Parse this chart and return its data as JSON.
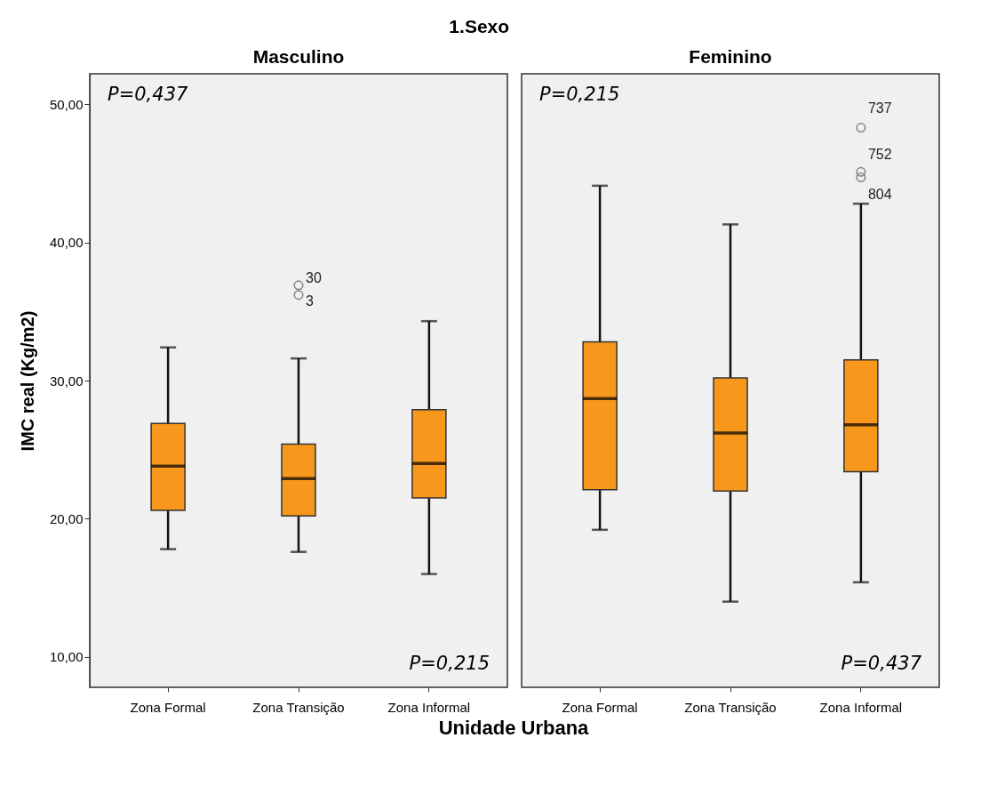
{
  "chart_data": [
    {
      "type": "box",
      "title": "1.Sexo",
      "subtitle": "Masculino",
      "xlabel": "Unidade Urbana",
      "ylabel": "IMC real (Kg/m2)",
      "categories": [
        "Zona Formal",
        "Zona Transição",
        "Zona Informal"
      ],
      "ylim": [
        7.8,
        52.2
      ],
      "yticks": [
        {
          "value": 10,
          "label": "10,00"
        },
        {
          "value": 20,
          "label": "20,00"
        },
        {
          "value": 30,
          "label": "30,00"
        },
        {
          "value": 40,
          "label": "40,00"
        },
        {
          "value": 50,
          "label": "50,00"
        }
      ],
      "grid": false,
      "series": [
        {
          "color": "#f7981d",
          "boxes": [
            {
              "low": 17.8,
              "q1": 20.6,
              "median": 23.8,
              "q3": 26.9,
              "high": 32.4
            },
            {
              "low": 17.6,
              "q1": 20.2,
              "median": 22.9,
              "q3": 25.4,
              "high": 31.6,
              "outliers": [
                36.9,
                36.2
              ]
            },
            {
              "low": 16.0,
              "q1": 21.5,
              "median": 24.0,
              "q3": 27.9,
              "high": 34.3
            }
          ]
        }
      ],
      "annotations": [
        "P=0,437",
        "P=0,215",
        "30",
        "3"
      ]
    },
    {
      "type": "box",
      "subtitle": "Feminino",
      "categories": [
        "Zona Formal",
        "Zona Transição",
        "Zona Informal"
      ],
      "ylim": [
        7.8,
        52.2
      ],
      "grid": false,
      "tick_labels": "x",
      "series": [
        {
          "color": "#f7981d",
          "boxes": [
            {
              "low": 19.2,
              "q1": 22.1,
              "median": 28.7,
              "q3": 32.8,
              "high": 44.1
            },
            {
              "low": 14.0,
              "q1": 22.0,
              "median": 26.2,
              "q3": 30.2,
              "high": 41.3
            },
            {
              "low": 15.4,
              "q1": 23.4,
              "median": 26.8,
              "q3": 31.5,
              "high": 42.8,
              "outliers": [
                48.3,
                45.1,
                44.7
              ]
            }
          ]
        }
      ],
      "annotations": [
        "P=0,215",
        "P=0,437",
        "737",
        "752",
        "804"
      ]
    }
  ]
}
